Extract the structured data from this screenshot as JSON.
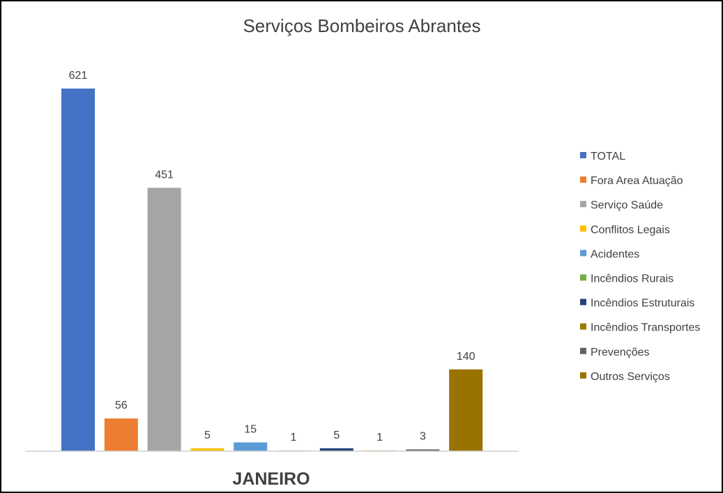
{
  "chart_data": {
    "type": "bar",
    "title": "Serviços Bombeiros Abrantes",
    "categories": [
      "JANEIRO"
    ],
    "series": [
      {
        "name": "TOTAL",
        "values": [
          621
        ],
        "color": "#4472C4"
      },
      {
        "name": "Fora Area Atuação",
        "values": [
          56
        ],
        "color": "#ED7D31"
      },
      {
        "name": "Serviço Saúde",
        "values": [
          451
        ],
        "color": "#A5A5A5"
      },
      {
        "name": "Conflitos Legais",
        "values": [
          5
        ],
        "color": "#FFC000"
      },
      {
        "name": "Acidentes",
        "values": [
          15
        ],
        "color": "#5B9BD5"
      },
      {
        "name": "Incêndios Rurais",
        "values": [
          1
        ],
        "color": "#70AD47"
      },
      {
        "name": "Incêndios Estruturais",
        "values": [
          5
        ],
        "color": "#264478"
      },
      {
        "name": "Incêndios Transportes",
        "values": [
          1
        ],
        "color": "#9E7A00"
      },
      {
        "name": "Prevenções",
        "values": [
          3
        ],
        "color": "#636363"
      },
      {
        "name": "Outros Serviços",
        "values": [
          140
        ],
        "color": "#997300"
      }
    ],
    "ylim": [
      0,
      680
    ],
    "grid": false,
    "legend_position": "right",
    "data_labels": true
  }
}
